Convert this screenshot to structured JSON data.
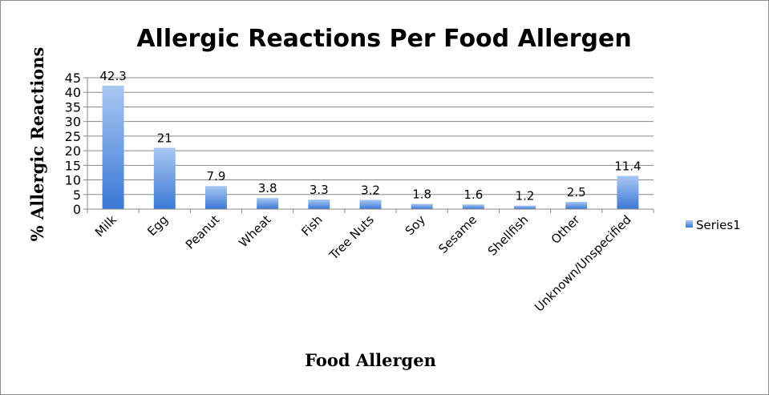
{
  "chart_data": {
    "type": "bar",
    "title": "Allergic Reactions Per Food Allergen",
    "xlabel": "Food Allergen",
    "ylabel": "% Allergic Reactions",
    "categories": [
      "Milk",
      "Egg",
      "Peanut",
      "Wheat",
      "Fish",
      "Tree Nuts",
      "Soy",
      "Sesame",
      "Shellfish",
      "Other",
      "Unknown/Unspecified"
    ],
    "series": [
      {
        "name": "Series1",
        "values": [
          42.3,
          21,
          7.9,
          3.8,
          3.3,
          3.2,
          1.8,
          1.6,
          1.2,
          2.5,
          11.4
        ],
        "labels": [
          "42.3",
          "21",
          "7.9",
          "3.8",
          "3.3",
          "3.2",
          "1.8",
          "1.6",
          "1.2",
          "2.5",
          "11.4"
        ]
      }
    ],
    "ylim": [
      0,
      45
    ],
    "yticks": [
      0,
      5,
      10,
      15,
      20,
      25,
      30,
      35,
      40,
      45
    ],
    "grid": true,
    "legend": "right",
    "colors": {
      "bar_light": "#a9c8f4",
      "bar_dark": "#3a78d6",
      "grid": "#888888",
      "axis": "#888888"
    }
  }
}
